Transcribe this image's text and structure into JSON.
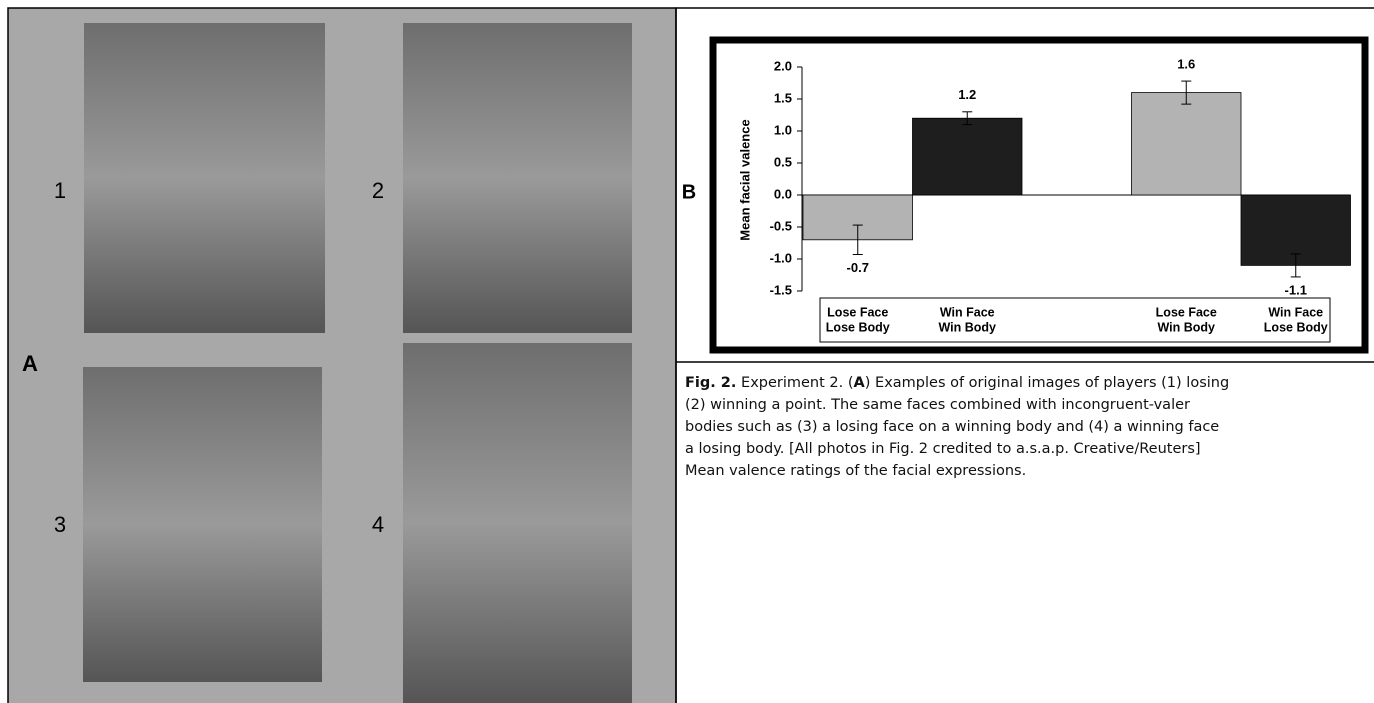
{
  "panel_a": {
    "label": "A",
    "photos": [
      "1",
      "2",
      "3",
      "4"
    ]
  },
  "panel_b": {
    "label": "B"
  },
  "chart_data": {
    "type": "bar",
    "ylabel": "Mean facial valence",
    "categories": [
      [
        "Lose Face",
        "Lose Body"
      ],
      [
        "Win Face",
        "Win Body"
      ],
      [
        "Lose Face",
        "Win Body"
      ],
      [
        "Win Face",
        "Lose Body"
      ]
    ],
    "values": [
      -0.7,
      1.2,
      1.6,
      -1.1
    ],
    "errors": [
      0.23,
      0.1,
      0.18,
      0.18
    ],
    "colors": [
      "#b3b3b3",
      "#1e1e1e",
      "#b3b3b3",
      "#1e1e1e"
    ],
    "ylim": [
      -1.5,
      2.0
    ],
    "yticks": [
      {
        "value": -1.5,
        "label": "-1.5"
      },
      {
        "value": -1.0,
        "label": "-1.0"
      },
      {
        "value": -0.5,
        "label": "-0.5"
      },
      {
        "value": 0.0,
        "label": "0.0"
      },
      {
        "value": 0.5,
        "label": "0.5"
      },
      {
        "value": 1.0,
        "label": "1.0"
      },
      {
        "value": 1.5,
        "label": "1.5"
      },
      {
        "value": 2.0,
        "label": "2.0"
      }
    ]
  },
  "caption": {
    "lines": [
      [
        "Fig. 2.",
        " Experiment 2. (",
        "A",
        ") Examples of original images of players (1) losing"
      ],
      [
        "(2) winning a point. The same faces combined with incongruent-valer"
      ],
      [
        "bodies such as (3) a losing face on a winning body and (4) a winning face"
      ],
      [
        "a losing body. [All photos in Fig. 2 credited to a.s.a.p. Creative/Reuters]"
      ],
      [
        "Mean valence ratings of the facial expressions."
      ]
    ]
  }
}
